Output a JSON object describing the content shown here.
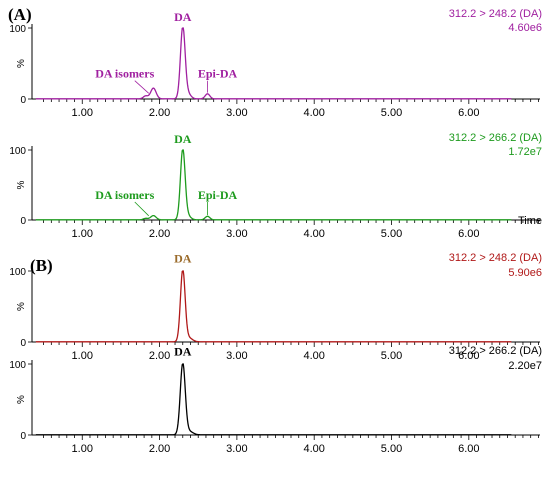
{
  "panel_labels": [
    "(A)",
    "(B)"
  ],
  "x_axis_title": "Time",
  "chart_data": [
    {
      "type": "line",
      "panel": "(A)",
      "transition": "312.2 > 248.2 (DA)",
      "intensity": "4.60e6",
      "color": "#a020a0",
      "xlim": [
        0.35,
        7.05
      ],
      "ylim": [
        0,
        100
      ],
      "x_ticks": [
        "1.00",
        "2.00",
        "3.00",
        "4.00",
        "5.00",
        "6.00"
      ],
      "y_ticks": [
        "0",
        "100"
      ],
      "y_axis_label": "%",
      "peaks": [
        {
          "rt": 1.82,
          "height": 4,
          "width": 0.03
        },
        {
          "rt": 1.92,
          "height": 15,
          "width": 0.035
        },
        {
          "rt": 2.3,
          "height": 100,
          "width": 0.03
        },
        {
          "rt": 2.36,
          "height": 8,
          "width": 0.04
        },
        {
          "rt": 2.62,
          "height": 7,
          "width": 0.03
        }
      ],
      "annotations": [
        {
          "text": "DA isomers",
          "x": 1.55,
          "y": 30,
          "target_x": 1.86,
          "target_y": 8
        },
        {
          "text": "DA",
          "x": 2.3,
          "y": 110
        },
        {
          "text": "Epi-DA",
          "x": 2.75,
          "y": 30,
          "target_x": 2.62,
          "target_y": 9
        }
      ]
    },
    {
      "type": "line",
      "panel": "(A)",
      "transition": "312.2 > 266.2 (DA)",
      "intensity": "1.72e7",
      "color": "#1e9b1e",
      "xlim": [
        0.35,
        7.05
      ],
      "ylim": [
        0,
        100
      ],
      "x_ticks": [
        "1.00",
        "2.00",
        "3.00",
        "4.00",
        "5.00",
        "6.00"
      ],
      "y_ticks": [
        "0",
        "100"
      ],
      "y_axis_label": "%",
      "peaks": [
        {
          "rt": 1.82,
          "height": 2,
          "width": 0.03
        },
        {
          "rt": 1.92,
          "height": 6,
          "width": 0.035
        },
        {
          "rt": 2.3,
          "height": 100,
          "width": 0.03
        },
        {
          "rt": 2.36,
          "height": 6,
          "width": 0.04
        },
        {
          "rt": 2.62,
          "height": 5,
          "width": 0.03
        }
      ],
      "annotations": [
        {
          "text": "DA isomers",
          "x": 1.55,
          "y": 30,
          "target_x": 1.86,
          "target_y": 6
        },
        {
          "text": "DA",
          "x": 2.3,
          "y": 110
        },
        {
          "text": "Epi-DA",
          "x": 2.75,
          "y": 30,
          "target_x": 2.62,
          "target_y": 7
        }
      ]
    },
    {
      "type": "line",
      "panel": "(B)",
      "transition": "312.2 > 248.2 (DA)",
      "intensity": "5.90e6",
      "color": "#b01818",
      "xlim": [
        0.35,
        7.05
      ],
      "ylim": [
        0,
        100
      ],
      "x_ticks": [
        "1.00",
        "2.00",
        "3.00",
        "4.00",
        "5.00",
        "6.00"
      ],
      "y_ticks": [
        "0",
        "100"
      ],
      "y_axis_label": "%",
      "peaks": [
        {
          "rt": 2.3,
          "height": 100,
          "width": 0.03
        },
        {
          "rt": 2.37,
          "height": 6,
          "width": 0.05
        }
      ],
      "annotations": [
        {
          "text": "DA",
          "x": 2.3,
          "y": 112,
          "color": "#9a6a2a"
        }
      ]
    },
    {
      "type": "line",
      "panel": "(B)",
      "transition": "312.2 > 266.2 (DA)",
      "intensity": "2.20e7",
      "color": "#000000",
      "xlim": [
        0.35,
        7.05
      ],
      "ylim": [
        0,
        100
      ],
      "x_ticks": [
        "1.00",
        "2.00",
        "3.00",
        "4.00",
        "5.00",
        "6.00"
      ],
      "y_ticks": [
        "0",
        "100"
      ],
      "y_axis_label": "%",
      "peaks": [
        {
          "rt": 2.3,
          "height": 100,
          "width": 0.032
        },
        {
          "rt": 2.38,
          "height": 5,
          "width": 0.05
        }
      ],
      "annotations": [
        {
          "text": "DA",
          "x": 2.3,
          "y": 112
        }
      ]
    }
  ]
}
